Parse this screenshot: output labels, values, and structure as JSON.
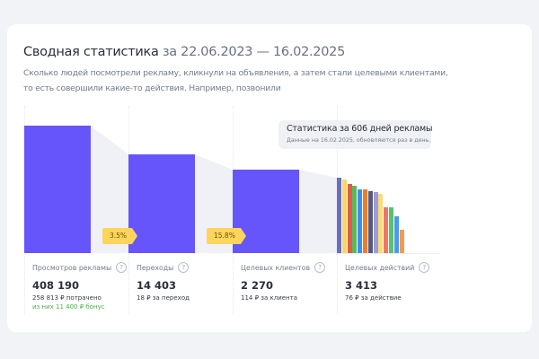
{
  "header": {
    "title": "Сводная статистика",
    "range": "за 22.06.2023 — 16.02.2025",
    "description": "Сколько людей посмотрели рекламу, кликнули на объявления, а затем стали целевыми клиентами, то есть совершили какие-то действия. Например, позвонили"
  },
  "colors": {
    "bar": "#6655fb",
    "badge": "#fdd45c",
    "funnel": "#f0f1f6",
    "bonus": "#4cb050"
  },
  "tooltip": {
    "title": "Статистика за 606 дней рекламы",
    "subtitle": "Данные на 16.02.2025, обновляются раз в день."
  },
  "conversions": [
    "3.5%",
    "15.8%"
  ],
  "action_bar_colors": [
    "#6a6fc0",
    "#f8d66a",
    "#e05a4e",
    "#5cb85c",
    "#3d8ef0",
    "#f07c2a",
    "#555a7a",
    "#9c9cd8",
    "#f8dc7a",
    "#e8786a",
    "#5cc06a",
    "#4a9af0",
    "#f59a50"
  ],
  "stats": [
    {
      "label": "Просмотров рекламы",
      "value": "408 190",
      "sub": "258 813 ₽ потрачено",
      "bonus": "из них 11 400 ₽ бонус"
    },
    {
      "label": "Переходы",
      "value": "14 403",
      "sub": "18 ₽ за переход"
    },
    {
      "label": "Целевых клиентов",
      "value": "2 270",
      "sub": "114 ₽ за клиента"
    },
    {
      "label": "Целевых действий",
      "value": "3 413",
      "sub": "76 ₽ за действие"
    }
  ]
}
